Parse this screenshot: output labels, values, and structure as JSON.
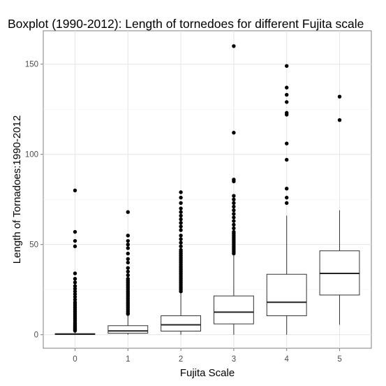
{
  "chart_data": {
    "type": "boxplot",
    "title": "Boxplot (1990-2012): Length of tornedoes for different Fujita scale",
    "xlabel": "Fujita Scale",
    "ylabel": "Length of Tornadoes:1990-2012",
    "categories": [
      "0",
      "1",
      "2",
      "3",
      "4",
      "5"
    ],
    "ylim": [
      -7.5,
      168.5
    ],
    "yticks": [
      0,
      50,
      100,
      150
    ],
    "grid": true,
    "boxes": [
      {
        "category": "0",
        "lower_whisker": 0,
        "q1": 0.1,
        "median": 0.3,
        "q3": 0.6,
        "upper_whisker": 1.8,
        "outliers": [
          80,
          57,
          52,
          49,
          34,
          31,
          29,
          27,
          25.5,
          24,
          22.5,
          21,
          19.5,
          18,
          17,
          16,
          15,
          14,
          13,
          12,
          11,
          10,
          9,
          8,
          7,
          6.2,
          5.5,
          4.8,
          4.2,
          3.6,
          3.1,
          2.6,
          2.2
        ]
      },
      {
        "category": "1",
        "lower_whisker": 0,
        "q1": 0.8,
        "median": 2.1,
        "q3": 5,
        "upper_whisker": 11,
        "outliers": [
          68,
          55,
          52,
          50,
          48,
          45,
          42,
          40,
          37,
          35,
          33,
          31,
          30,
          29,
          28,
          27,
          26,
          25,
          24,
          23,
          22,
          21,
          20,
          19,
          18,
          17,
          16,
          15,
          14,
          13,
          12,
          11.5
        ]
      },
      {
        "category": "2",
        "lower_whisker": 0,
        "q1": 2,
        "median": 5.5,
        "q3": 10.5,
        "upper_whisker": 23,
        "outliers": [
          79,
          76,
          73,
          70,
          68,
          66,
          64,
          62,
          60,
          58,
          55,
          53,
          51,
          49,
          47,
          46,
          45,
          44,
          43,
          42,
          41,
          40,
          39,
          38,
          37,
          36,
          35,
          34,
          33,
          32,
          31,
          30,
          29,
          28,
          27,
          26,
          25,
          24
        ]
      },
      {
        "category": "3",
        "lower_whisker": 0,
        "q1": 6,
        "median": 12.5,
        "q3": 21.5,
        "upper_whisker": 44,
        "outliers": [
          160,
          112,
          86,
          85,
          77,
          75,
          73,
          71,
          69,
          67,
          65,
          63,
          61,
          59,
          57,
          56,
          55,
          54,
          53,
          52,
          51,
          50,
          49,
          48,
          47,
          46,
          45
        ]
      },
      {
        "category": "4",
        "lower_whisker": 0,
        "q1": 10.5,
        "median": 18,
        "q3": 33.5,
        "upper_whisker": 66,
        "outliers": [
          149,
          137,
          133,
          129,
          123,
          122,
          106,
          97,
          81,
          76,
          73
        ]
      },
      {
        "category": "5",
        "lower_whisker": 5.5,
        "q1": 22,
        "median": 34,
        "q3": 46.5,
        "upper_whisker": 69,
        "outliers": [
          132,
          119
        ]
      }
    ]
  }
}
